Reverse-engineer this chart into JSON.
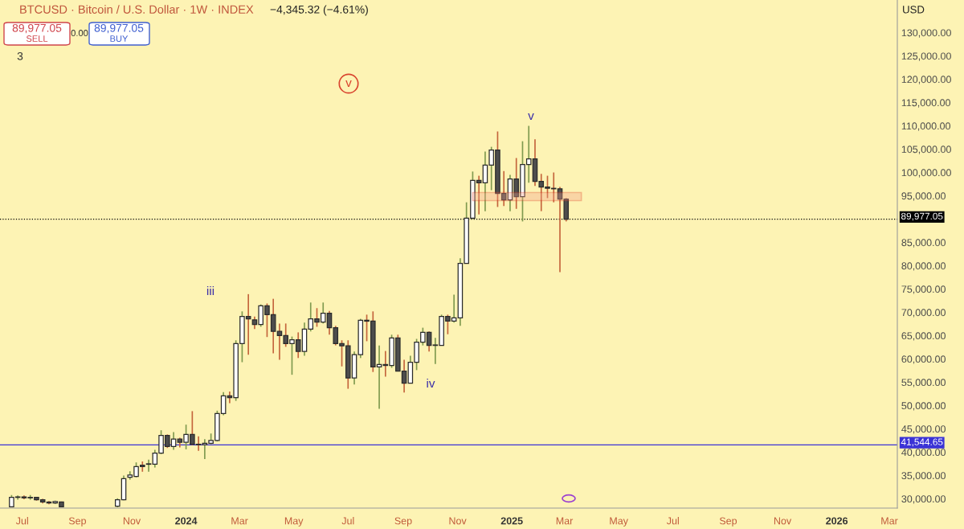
{
  "chart_data": {
    "type": "candlestick",
    "title": "BTCUSD · Bitcoin / U.S. Dollar · 1W · INDEX",
    "subtitle": "−4,345.32 (−4.61%)",
    "x": [
      "2023-06-19",
      "2023-06-26",
      "2023-07-03",
      "2023-07-10",
      "2023-07-17",
      "2023-07-24",
      "2023-07-31",
      "2023-08-07",
      "2023-08-14",
      "2023-10-16",
      "2023-10-23",
      "2023-10-30",
      "2023-11-06",
      "2023-11-13",
      "2023-11-20",
      "2023-11-27",
      "2023-12-04",
      "2023-12-11",
      "2023-12-18",
      "2023-12-25",
      "2024-01-01",
      "2024-01-08",
      "2024-01-15",
      "2024-01-22",
      "2024-01-29",
      "2024-02-05",
      "2024-02-12",
      "2024-02-19",
      "2024-02-26",
      "2024-03-04",
      "2024-03-11",
      "2024-03-18",
      "2024-03-25",
      "2024-04-01",
      "2024-04-08",
      "2024-04-15",
      "2024-04-22",
      "2024-04-29",
      "2024-05-06",
      "2024-05-13",
      "2024-05-20",
      "2024-05-27",
      "2024-06-03",
      "2024-06-10",
      "2024-06-17",
      "2024-06-24",
      "2024-07-01",
      "2024-07-08",
      "2024-07-15",
      "2024-07-22",
      "2024-07-29",
      "2024-08-05",
      "2024-08-12",
      "2024-08-19",
      "2024-08-26",
      "2024-09-02",
      "2024-09-09",
      "2024-09-16",
      "2024-09-23",
      "2024-09-30",
      "2024-10-07",
      "2024-10-14",
      "2024-10-21",
      "2024-10-28",
      "2024-11-04",
      "2024-11-11",
      "2024-11-18",
      "2024-11-25",
      "2024-12-02",
      "2024-12-09",
      "2024-12-16",
      "2024-12-23",
      "2024-12-30",
      "2025-01-06",
      "2025-01-13",
      "2025-01-20",
      "2025-01-27",
      "2025-02-03",
      "2025-02-10",
      "2025-02-17",
      "2025-02-24",
      "2025-03-03"
    ],
    "ohlc": [
      [
        28300,
        30800,
        28200,
        30300
      ],
      [
        30300,
        30700,
        29800,
        30400
      ],
      [
        30400,
        30700,
        29900,
        30200
      ],
      [
        30200,
        30800,
        29800,
        30300
      ],
      [
        30300,
        30400,
        29600,
        29800
      ],
      [
        29800,
        30000,
        29000,
        29300
      ],
      [
        29300,
        29500,
        28800,
        29100
      ],
      [
        29100,
        29600,
        28900,
        29400
      ],
      [
        29300,
        29400,
        28200,
        28300
      ],
      [
        28400,
        30100,
        28200,
        29800
      ],
      [
        29800,
        35000,
        29700,
        34300
      ],
      [
        34600,
        35900,
        34100,
        35100
      ],
      [
        34800,
        37800,
        34600,
        36900
      ],
      [
        37200,
        38000,
        35800,
        36900
      ],
      [
        37400,
        38400,
        35800,
        37500
      ],
      [
        37400,
        40500,
        36700,
        39800
      ],
      [
        39800,
        44700,
        39600,
        43600
      ],
      [
        43600,
        43800,
        40900,
        41200
      ],
      [
        41200,
        44300,
        40500,
        42800
      ],
      [
        42800,
        43100,
        41000,
        42100
      ],
      [
        42100,
        45900,
        40600,
        43800
      ],
      [
        43800,
        48800,
        41500,
        41700
      ],
      [
        41700,
        43400,
        40300,
        41600
      ],
      [
        41600,
        42800,
        38500,
        41900
      ],
      [
        41900,
        44000,
        41700,
        42500
      ],
      [
        42500,
        48900,
        42300,
        48300
      ],
      [
        48300,
        52900,
        47900,
        52100
      ],
      [
        52100,
        53000,
        50500,
        51700
      ],
      [
        51700,
        64000,
        51000,
        63300
      ],
      [
        63300,
        70200,
        59300,
        69100
      ],
      [
        69100,
        73900,
        60900,
        68600
      ],
      [
        68400,
        69100,
        66400,
        67400
      ],
      [
        67400,
        71700,
        66900,
        71400
      ],
      [
        71400,
        71900,
        64700,
        69500
      ],
      [
        69500,
        72900,
        61200,
        65900
      ],
      [
        65900,
        67600,
        59800,
        65000
      ],
      [
        65000,
        67600,
        62600,
        63300
      ],
      [
        63300,
        64800,
        56600,
        64100
      ],
      [
        64100,
        65700,
        60200,
        61600
      ],
      [
        61600,
        67800,
        60700,
        66400
      ],
      [
        66400,
        72100,
        65900,
        68600
      ],
      [
        68600,
        70900,
        66900,
        67900
      ],
      [
        67900,
        72100,
        67600,
        69800
      ],
      [
        69800,
        70300,
        65200,
        66700
      ],
      [
        66700,
        67100,
        62900,
        63300
      ],
      [
        63300,
        64000,
        58400,
        62800
      ],
      [
        62800,
        64000,
        53600,
        55900
      ],
      [
        55900,
        61600,
        54500,
        60900
      ],
      [
        60900,
        68600,
        60200,
        68300
      ],
      [
        68300,
        69500,
        63800,
        68100
      ],
      [
        68100,
        70200,
        57200,
        58300
      ],
      [
        58300,
        62900,
        49300,
        58800
      ],
      [
        58800,
        61700,
        56200,
        58600
      ],
      [
        58600,
        65200,
        58100,
        64500
      ],
      [
        64500,
        65200,
        57400,
        57400
      ],
      [
        57400,
        59800,
        52800,
        54800
      ],
      [
        54800,
        60700,
        54800,
        59300
      ],
      [
        59300,
        64300,
        57600,
        63600
      ],
      [
        63600,
        66700,
        62900,
        65700
      ],
      [
        65700,
        65900,
        61600,
        62900
      ],
      [
        62900,
        64500,
        58900,
        63000
      ],
      [
        62900,
        69500,
        62900,
        69100
      ],
      [
        69100,
        69500,
        65300,
        68100
      ],
      [
        68100,
        73800,
        67800,
        68800
      ],
      [
        68800,
        81600,
        67100,
        80500
      ],
      [
        80500,
        93600,
        80500,
        90200
      ],
      [
        90200,
        100200,
        90000,
        98300
      ],
      [
        98300,
        99300,
        91000,
        97800
      ],
      [
        97800,
        104500,
        91700,
        101600
      ],
      [
        101600,
        105500,
        96200,
        104800
      ],
      [
        104800,
        108800,
        92600,
        95500
      ],
      [
        95500,
        100300,
        92800,
        94100
      ],
      [
        94100,
        99500,
        91700,
        98600
      ],
      [
        98600,
        103100,
        92200,
        94800
      ],
      [
        94800,
        106700,
        89500,
        101700
      ],
      [
        101700,
        110000,
        97800,
        102900
      ],
      [
        102900,
        107100,
        97100,
        98100
      ],
      [
        98100,
        99700,
        91700,
        96900
      ],
      [
        96900,
        99300,
        94500,
        96600
      ],
      [
        96600,
        100000,
        93600,
        96500
      ],
      [
        96500,
        96900,
        78600,
        94300
      ],
      [
        94300,
        94500,
        89500,
        89977.05
      ]
    ],
    "xlim": [
      "2023-06-06",
      "2026-03-10"
    ],
    "xticks": [
      {
        "value": "2023-07-01",
        "label": "Jul"
      },
      {
        "value": "2023-09-01",
        "label": "Sep"
      },
      {
        "value": "2023-11-01",
        "label": "Nov"
      },
      {
        "value": "2024-01-01",
        "label": "2024"
      },
      {
        "value": "2024-03-01",
        "label": "Mar"
      },
      {
        "value": "2024-05-01",
        "label": "May"
      },
      {
        "value": "2024-07-01",
        "label": "Jul"
      },
      {
        "value": "2024-09-01",
        "label": "Sep"
      },
      {
        "value": "2024-11-01",
        "label": "Nov"
      },
      {
        "value": "2025-01-01",
        "label": "2025"
      },
      {
        "value": "2025-03-01",
        "label": "Mar"
      },
      {
        "value": "2025-05-01",
        "label": "May"
      },
      {
        "value": "2025-07-01",
        "label": "Jul"
      },
      {
        "value": "2025-09-01",
        "label": "Sep"
      },
      {
        "value": "2025-11-01",
        "label": "Nov"
      },
      {
        "value": "2026-01-01",
        "label": "2026"
      },
      {
        "value": "2026-03-01",
        "label": "Mar"
      }
    ],
    "ylim": [
      28000,
      137000
    ],
    "yticks": [
      {
        "value": 30000,
        "label": "30,000.00"
      },
      {
        "value": 35000,
        "label": "35,000.00"
      },
      {
        "value": 40000,
        "label": "40,000.00"
      },
      {
        "value": 45000,
        "label": "45,000.00"
      },
      {
        "value": 50000,
        "label": "50,000.00"
      },
      {
        "value": 55000,
        "label": "55,000.00"
      },
      {
        "value": 60000,
        "label": "60,000.00"
      },
      {
        "value": 65000,
        "label": "65,000.00"
      },
      {
        "value": 70000,
        "label": "70,000.00"
      },
      {
        "value": 75000,
        "label": "75,000.00"
      },
      {
        "value": 80000,
        "label": "80,000.00"
      },
      {
        "value": 85000,
        "label": "85,000.00"
      },
      {
        "value": 95000,
        "label": "95,000.00"
      },
      {
        "value": 100000,
        "label": "100,000.00"
      },
      {
        "value": 105000,
        "label": "105,000.00"
      },
      {
        "value": 110000,
        "label": "110,000.00"
      },
      {
        "value": 115000,
        "label": "115,000.00"
      },
      {
        "value": 120000,
        "label": "120,000.00"
      },
      {
        "value": 125000,
        "label": "125,000.00"
      },
      {
        "value": 130000,
        "label": "130,000.00"
      }
    ],
    "ref_lines": [
      {
        "axis": "y",
        "value": 89977.05,
        "label": "89,977.05",
        "color": "#000000",
        "line_style": "dotted"
      },
      {
        "axis": "y",
        "value": 41544.65,
        "label": "41,544.65",
        "color": "#3b33d6",
        "line_style": "solid"
      }
    ],
    "annotations": [
      "89,977.05",
      "SELL",
      "0.00",
      "89,977.05",
      "BUY",
      "3",
      "USD",
      "iii",
      "iv",
      "v",
      "v"
    ],
    "grid": false,
    "legend": false
  }
}
